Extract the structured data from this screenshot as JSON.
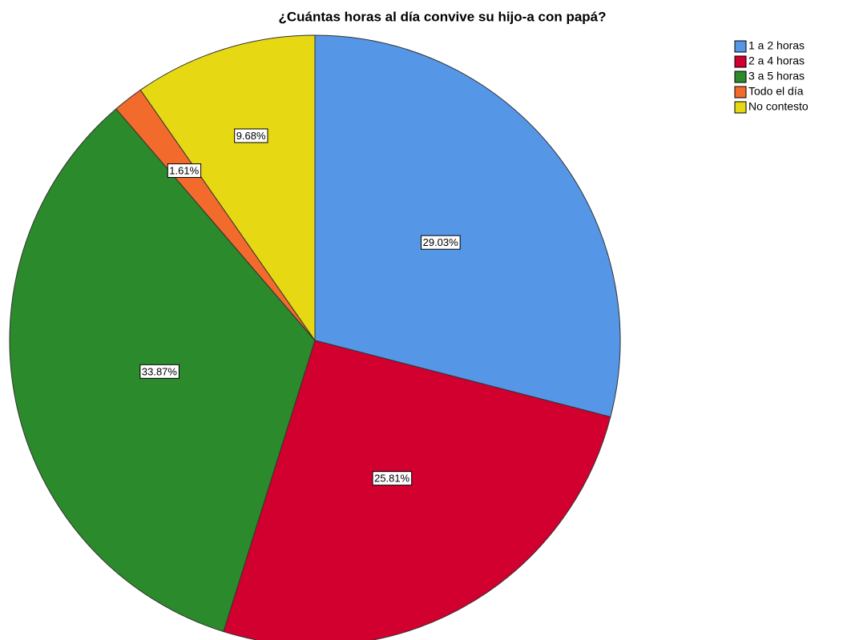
{
  "chart_data": {
    "type": "pie",
    "title": "¿Cuántas horas al día convive su hijo-a con papá?",
    "categories": [
      "1 a 2 horas",
      "2 a 4 horas",
      "3 a 5 horas",
      "Todo el día",
      "No contesto"
    ],
    "values": [
      29.03,
      25.81,
      33.87,
      1.61,
      9.68
    ],
    "value_labels": [
      "29.03%",
      "25.81%",
      "33.87%",
      "1.61%",
      "9.68%"
    ],
    "colors": [
      "#5596e6",
      "#d1002f",
      "#2b8a2b",
      "#f26b2c",
      "#e6d813"
    ],
    "legend": "right"
  }
}
